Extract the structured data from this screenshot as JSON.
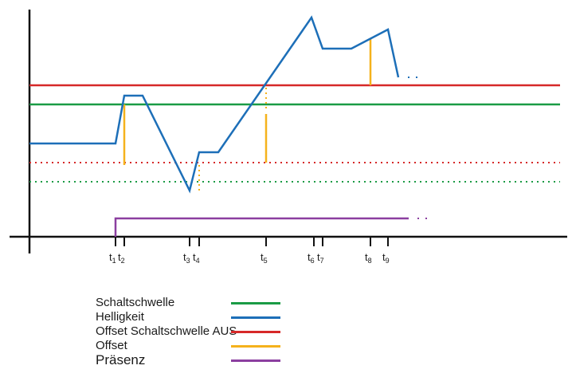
{
  "diagram": {
    "time_labels": [
      {
        "base": "t",
        "sub": "1"
      },
      {
        "base": "t",
        "sub": "2"
      },
      {
        "base": "t",
        "sub": "3"
      },
      {
        "base": "t",
        "sub": "4"
      },
      {
        "base": "t",
        "sub": "5"
      },
      {
        "base": "t",
        "sub": "6"
      },
      {
        "base": "t",
        "sub": "7"
      },
      {
        "base": "t",
        "sub": "8"
      },
      {
        "base": "t",
        "sub": "9"
      }
    ]
  },
  "legend": {
    "items": [
      {
        "label": "Schaltschwelle",
        "color": "#1a9b45"
      },
      {
        "label": "Helligkeit",
        "color": "#1d6fb8"
      },
      {
        "label": "Offset Schaltschwelle AUS",
        "color": "#d62828"
      },
      {
        "label": "Offset",
        "color": "#f5b21c"
      },
      {
        "label": "Präsenz",
        "color": "#8b3fa0"
      }
    ]
  }
}
